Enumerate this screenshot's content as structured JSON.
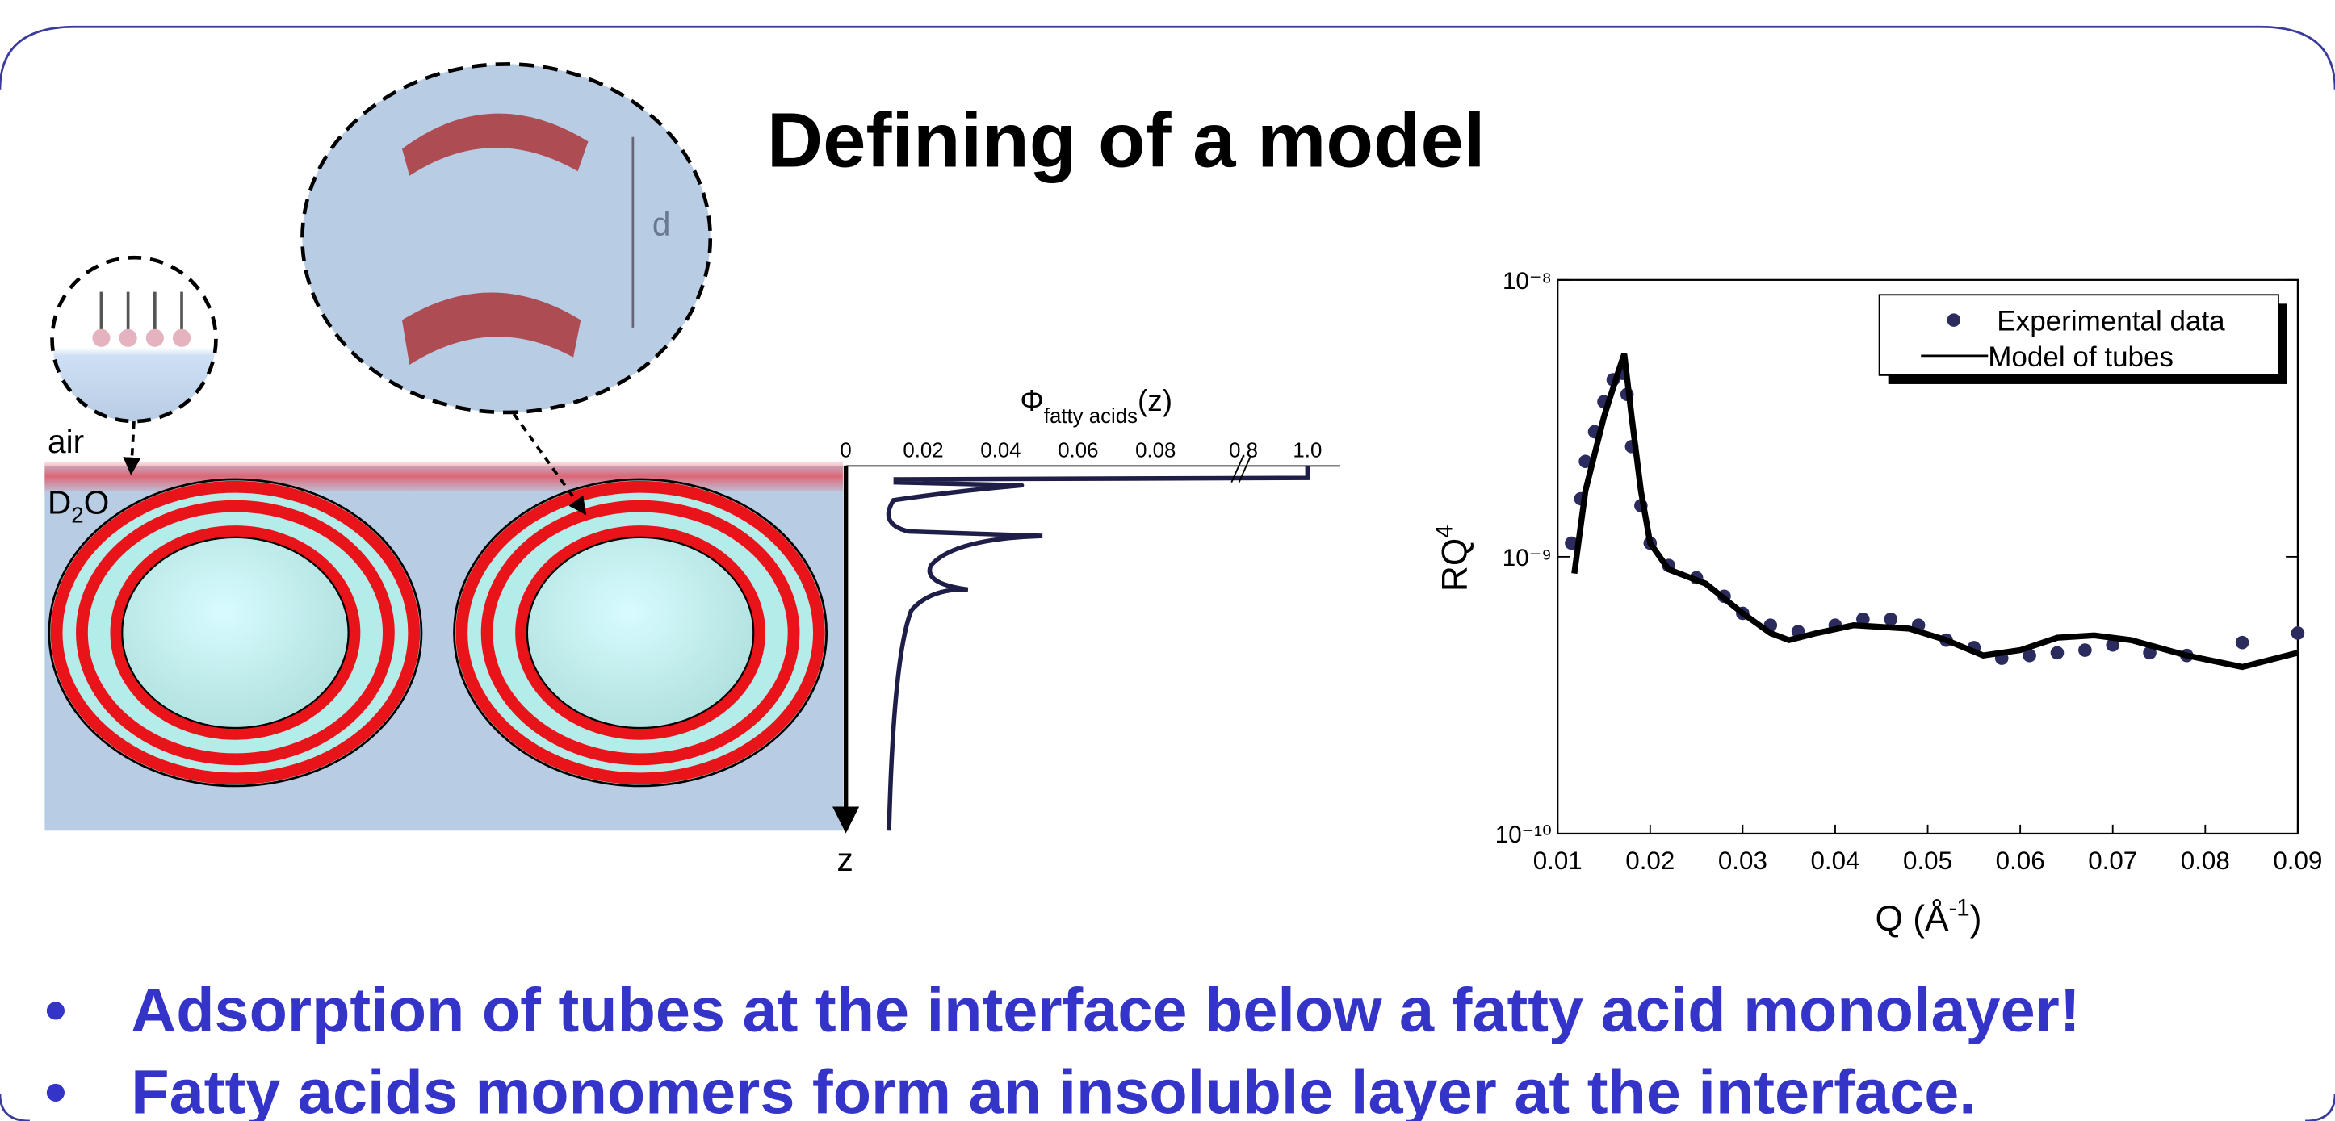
{
  "slide": {
    "title": "Defining of a model",
    "bullets": [
      "Adsorption of tubes at the interface below a fatty acid monolayer!",
      "Fatty acids monomers form an insoluble layer at the interface."
    ]
  },
  "diagram": {
    "air": "air",
    "d2o": [
      "D",
      "2",
      "O"
    ],
    "spacing": "d",
    "depth_axis": "z",
    "profile_title": [
      "Φ",
      "fatty acids",
      "(z)"
    ],
    "profile_ticks": [
      "0",
      "0.02",
      "0.04",
      "0.06",
      "0.08",
      "0.8",
      "1.0"
    ]
  },
  "chart_data": {
    "type": "scatter",
    "xlabel": [
      "Q (",
      "Å",
      "-1",
      ")"
    ],
    "ylabel": [
      "RQ",
      "4"
    ],
    "xlim": [
      0.01,
      0.09
    ],
    "xticks": [
      0.01,
      0.02,
      0.03,
      0.04,
      0.05,
      0.06,
      0.07,
      0.08,
      0.09
    ],
    "ylim": [
      1e-10,
      1e-08
    ],
    "log_y": true,
    "yticks": [
      {
        "value": 1e-10,
        "label": "10⁻¹⁰"
      },
      {
        "value": 1e-09,
        "label": "10⁻⁹"
      },
      {
        "value": 1e-08,
        "label": "10⁻⁸"
      }
    ],
    "legend": "upper right",
    "series": [
      {
        "name": "Experimental data",
        "kind": "scatter",
        "color": "#2b2b5e",
        "x": [
          0.0115,
          0.0125,
          0.013,
          0.014,
          0.015,
          0.016,
          0.017,
          0.0175,
          0.018,
          0.019,
          0.02,
          0.022,
          0.025,
          0.028,
          0.03,
          0.033,
          0.036,
          0.04,
          0.043,
          0.046,
          0.049,
          0.052,
          0.055,
          0.058,
          0.061,
          0.064,
          0.067,
          0.07,
          0.074,
          0.078,
          0.084,
          0.09
        ],
        "values": [
          1.12e-09,
          1.62e-09,
          2.21e-09,
          2.83e-09,
          3.63e-09,
          4.36e-09,
          4.6e-09,
          3.86e-09,
          2.5e-09,
          1.53e-09,
          1.12e-09,
          9.3e-10,
          8.4e-10,
          7.2e-10,
          6.25e-10,
          5.66e-10,
          5.37e-10,
          5.66e-10,
          5.95e-10,
          5.95e-10,
          5.66e-10,
          5e-10,
          4.7e-10,
          4.3e-10,
          4.4e-10,
          4.5e-10,
          4.6e-10,
          4.8e-10,
          4.5e-10,
          4.4e-10,
          4.9e-10,
          5.3e-10
        ]
      },
      {
        "name": "Model of tubes",
        "kind": "line",
        "color": "#000000",
        "x": [
          0.0118,
          0.013,
          0.015,
          0.0165,
          0.0172,
          0.018,
          0.019,
          0.02,
          0.022,
          0.026,
          0.03,
          0.033,
          0.035,
          0.038,
          0.042,
          0.048,
          0.052,
          0.056,
          0.06,
          0.064,
          0.068,
          0.072,
          0.078,
          0.084,
          0.09
        ],
        "values": [
          8.7e-10,
          1.73e-09,
          3.2e-09,
          4.6e-09,
          5.4e-09,
          3.2e-09,
          1.73e-09,
          1.12e-09,
          9e-10,
          8e-10,
          6.25e-10,
          5.3e-10,
          5e-10,
          5.3e-10,
          5.66e-10,
          5.5e-10,
          5e-10,
          4.4e-10,
          4.6e-10,
          5.1e-10,
          5.2e-10,
          5e-10,
          4.4e-10,
          4e-10,
          4.5e-10
        ]
      }
    ]
  }
}
